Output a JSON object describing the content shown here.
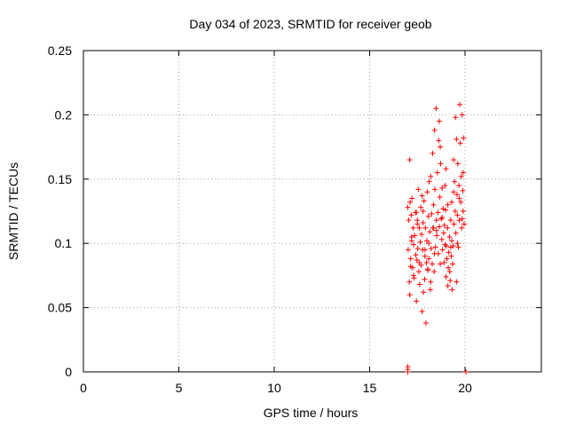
{
  "chart_data": {
    "type": "scatter",
    "title": "Day 034 of 2023, SRMTID for receiver geob",
    "xlabel": "GPS time / hours",
    "ylabel": "SRMTID / TECUs",
    "xlim": [
      0,
      24
    ],
    "ylim": [
      0,
      0.25
    ],
    "grid": true,
    "x_ticks": [
      0,
      5,
      10,
      15,
      20
    ],
    "x_tick_labels": [
      "0",
      "5",
      "10",
      "15",
      "20"
    ],
    "y_ticks": [
      0,
      0.05,
      0.1,
      0.15,
      0.2,
      0.25
    ],
    "y_tick_labels": [
      "0",
      "0.05",
      "0.1",
      "0.15",
      "0.2",
      "0.25"
    ],
    "marker": "+",
    "series": [
      {
        "name": "SRMTID",
        "color": "#ff0000",
        "x": [
          17.0,
          17.02,
          17.05,
          17.08,
          17.1,
          17.12,
          17.15,
          17.18,
          17.2,
          17.22,
          17.25,
          17.28,
          17.3,
          17.33,
          17.36,
          17.4,
          17.42,
          17.45,
          17.48,
          17.5,
          17.52,
          17.55,
          17.58,
          17.6,
          17.62,
          17.65,
          17.68,
          17.7,
          17.72,
          17.75,
          17.78,
          17.8,
          17.82,
          17.85,
          17.88,
          17.9,
          17.92,
          17.95,
          17.98,
          18.0,
          18.02,
          18.05,
          18.08,
          18.1,
          18.12,
          18.15,
          18.18,
          18.2,
          18.22,
          18.25,
          18.28,
          18.3,
          18.32,
          18.35,
          18.38,
          18.4,
          18.42,
          18.45,
          18.48,
          18.5,
          18.52,
          18.55,
          18.58,
          18.6,
          18.62,
          18.65,
          18.68,
          18.7,
          18.72,
          18.75,
          18.78,
          18.8,
          18.82,
          18.85,
          18.88,
          18.9,
          18.92,
          18.95,
          18.98,
          19.0,
          19.02,
          19.05,
          19.08,
          19.1,
          19.12,
          19.15,
          19.18,
          19.2,
          19.22,
          19.25,
          19.28,
          19.3,
          19.32,
          19.35,
          19.38,
          19.4,
          19.42,
          19.45,
          19.48,
          19.5,
          19.52,
          19.55,
          19.58,
          19.6,
          19.62,
          19.65,
          19.68,
          19.7,
          19.72,
          19.75,
          19.78,
          19.8,
          19.82,
          19.85,
          19.88,
          19.9,
          19.92,
          19.95,
          17.1,
          17.3,
          17.6,
          17.9,
          18.2,
          18.5,
          18.8,
          19.1,
          19.4,
          19.7,
          17.2,
          17.5,
          17.8,
          18.1,
          18.4,
          18.7,
          19.0,
          19.3,
          19.6,
          19.9,
          17.15,
          17.45,
          17.75,
          18.05,
          18.35,
          18.65,
          18.95,
          19.25,
          19.55,
          19.85,
          17.0,
          17.0,
          17.0,
          20.05
        ],
        "y": [
          0.128,
          0.095,
          0.118,
          0.07,
          0.165,
          0.132,
          0.088,
          0.122,
          0.102,
          0.135,
          0.081,
          0.112,
          0.099,
          0.073,
          0.106,
          0.124,
          0.091,
          0.055,
          0.087,
          0.118,
          0.096,
          0.142,
          0.078,
          0.112,
          0.068,
          0.101,
          0.128,
          0.083,
          0.107,
          0.047,
          0.095,
          0.116,
          0.062,
          0.133,
          0.072,
          0.09,
          0.112,
          0.038,
          0.085,
          0.102,
          0.14,
          0.079,
          0.121,
          0.1,
          0.148,
          0.109,
          0.064,
          0.152,
          0.096,
          0.123,
          0.084,
          0.17,
          0.112,
          0.13,
          0.078,
          0.188,
          0.142,
          0.097,
          0.205,
          0.118,
          0.106,
          0.155,
          0.124,
          0.092,
          0.18,
          0.113,
          0.136,
          0.084,
          0.162,
          0.119,
          0.103,
          0.143,
          0.095,
          0.127,
          0.108,
          0.085,
          0.114,
          0.099,
          0.126,
          0.074,
          0.098,
          0.088,
          0.112,
          0.067,
          0.081,
          0.093,
          0.105,
          0.078,
          0.071,
          0.118,
          0.09,
          0.102,
          0.064,
          0.084,
          0.098,
          0.165,
          0.115,
          0.148,
          0.125,
          0.198,
          0.108,
          0.181,
          0.138,
          0.122,
          0.162,
          0.097,
          0.145,
          0.118,
          0.208,
          0.178,
          0.132,
          0.152,
          0.112,
          0.2,
          0.141,
          0.125,
          0.182,
          0.115,
          0.06,
          0.075,
          0.085,
          0.095,
          0.07,
          0.11,
          0.12,
          0.13,
          0.14,
          0.135,
          0.105,
          0.115,
          0.125,
          0.088,
          0.092,
          0.175,
          0.158,
          0.132,
          0.1,
          0.155,
          0.082,
          0.124,
          0.137,
          0.08,
          0.112,
          0.195,
          0.145,
          0.097,
          0.07,
          0.119,
          0.0,
          0.002,
          0.004,
          0.0
        ]
      }
    ]
  }
}
